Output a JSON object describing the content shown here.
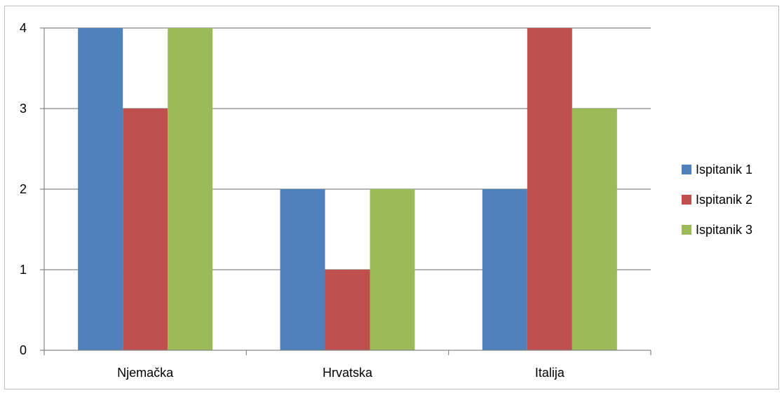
{
  "chart_data": {
    "type": "bar",
    "categories": [
      "Njemačka",
      "Hrvatska",
      "Italija"
    ],
    "series": [
      {
        "name": "Ispitanik 1",
        "values": [
          4,
          2,
          2
        ],
        "color": "#4f81bd"
      },
      {
        "name": "Ispitanik 2",
        "values": [
          3,
          1,
          4
        ],
        "color": "#c0504d"
      },
      {
        "name": "Ispitanik 3",
        "values": [
          4,
          2,
          3
        ],
        "color": "#9bbb59"
      }
    ],
    "ylim": [
      0,
      4
    ],
    "yticks": [
      0,
      1,
      2,
      3,
      4
    ],
    "grid": true,
    "legend": "right"
  }
}
